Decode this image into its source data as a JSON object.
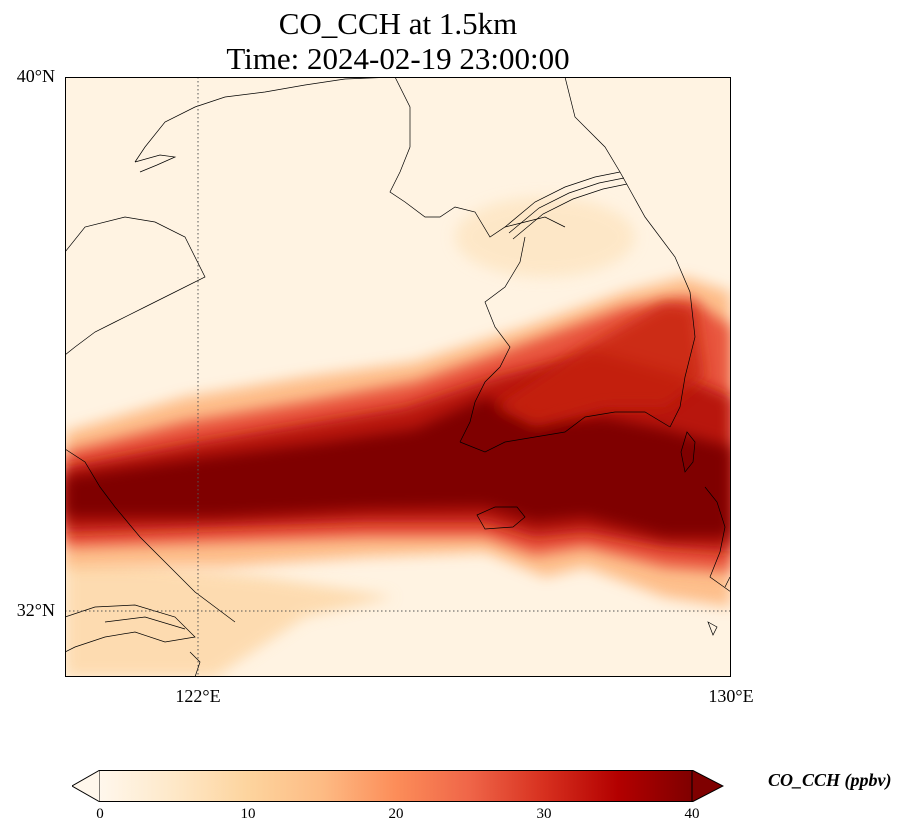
{
  "title": {
    "line1": "CO_CCH at 1.5km",
    "line2": "Time: 2024-02-19 23:00:00"
  },
  "map": {
    "lat_labels": [
      "40°N",
      "32°N"
    ],
    "lon_labels": [
      "122°E",
      "130°E"
    ],
    "lat_range": [
      31,
      40
    ],
    "lon_range": [
      120,
      130
    ],
    "gridlines": {
      "lat": [
        32
      ],
      "lon": [
        122
      ]
    },
    "field": "CO_CCH",
    "plume": "high-concentration band (≥40 ppbv) stretching west–east across about 33°N"
  },
  "colorbar": {
    "label": "CO_CCH (ppbv)",
    "ticks": [
      "0",
      "10",
      "20",
      "30",
      "40"
    ],
    "range": [
      0,
      40
    ],
    "colormap": "OrRd",
    "colors": [
      "#fff7ec",
      "#fee8c8",
      "#fdd49e",
      "#fdbb84",
      "#fc8d59",
      "#ef6548",
      "#d7301f",
      "#b30000",
      "#7f0000"
    ],
    "extend": "both"
  }
}
